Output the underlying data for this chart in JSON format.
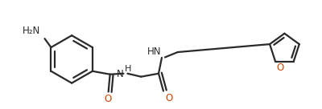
{
  "bg_color": "#ffffff",
  "line_color": "#2a2a2a",
  "o_color": "#cc4400",
  "n_color": "#2a2a2a",
  "lw": 1.6,
  "fs": 8.5,
  "figsize": [
    4.0,
    1.36
  ],
  "dpi": 100,
  "xlim": [
    0,
    4.0
  ],
  "ylim": [
    0,
    1.36
  ]
}
